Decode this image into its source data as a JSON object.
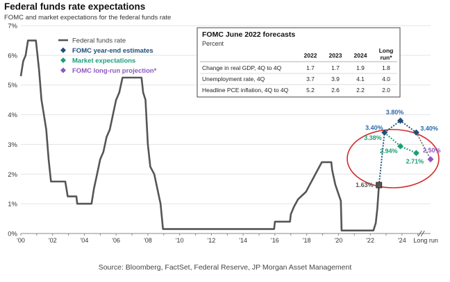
{
  "title": "Federal funds rate expectations",
  "subtitle": "FOMC and market expectations for the federal funds rate",
  "source": "Source:  Bloomberg, FactSet, Federal Reserve, JP Morgan Asset Management",
  "chart_data": {
    "type": "line",
    "ylim": [
      0,
      7
    ],
    "xlim": [
      2000,
      2025.8
    ],
    "yticks": [
      "0%",
      "1%",
      "2%",
      "3%",
      "4%",
      "5%",
      "6%",
      "7%"
    ],
    "xticks": [
      {
        "x": 2000,
        "label": "'00"
      },
      {
        "x": 2002,
        "label": "'02"
      },
      {
        "x": 2004,
        "label": "'04"
      },
      {
        "x": 2006,
        "label": "'06"
      },
      {
        "x": 2008,
        "label": "'08"
      },
      {
        "x": 2010,
        "label": "'10"
      },
      {
        "x": 2012,
        "label": "'12"
      },
      {
        "x": 2014,
        "label": "'14"
      },
      {
        "x": 2016,
        "label": "'16"
      },
      {
        "x": 2018,
        "label": "'18"
      },
      {
        "x": 2020,
        "label": "'20"
      },
      {
        "x": 2022,
        "label": "'22"
      },
      {
        "x": 2024,
        "label": "'24"
      },
      {
        "x": 2025.5,
        "label": "Long run"
      }
    ],
    "legend": [
      {
        "label": "Federal funds rate",
        "color": "#555555",
        "marker": "line"
      },
      {
        "label": "FOMC year-end estimates",
        "color": "#1f4e79",
        "marker": "diamond"
      },
      {
        "label": "Market expectations",
        "color": "#1a9e77",
        "marker": "diamond"
      },
      {
        "label": "FOMC long-run projection*",
        "color": "#8e55c4",
        "marker": "diamond"
      }
    ],
    "series": [
      {
        "name": "Federal funds rate",
        "color": "#555555",
        "points": [
          [
            2000.0,
            5.3
          ],
          [
            2000.15,
            5.8
          ],
          [
            2000.3,
            6.0
          ],
          [
            2000.45,
            6.5
          ],
          [
            2000.95,
            6.5
          ],
          [
            2001.05,
            6.0
          ],
          [
            2001.15,
            5.5
          ],
          [
            2001.3,
            4.5
          ],
          [
            2001.45,
            4.0
          ],
          [
            2001.6,
            3.5
          ],
          [
            2001.75,
            2.5
          ],
          [
            2001.9,
            1.75
          ],
          [
            2002.8,
            1.75
          ],
          [
            2002.95,
            1.25
          ],
          [
            2003.5,
            1.25
          ],
          [
            2003.55,
            1.0
          ],
          [
            2004.45,
            1.0
          ],
          [
            2004.6,
            1.5
          ],
          [
            2004.8,
            2.0
          ],
          [
            2005.0,
            2.5
          ],
          [
            2005.2,
            2.75
          ],
          [
            2005.4,
            3.25
          ],
          [
            2005.6,
            3.5
          ],
          [
            2005.8,
            4.0
          ],
          [
            2006.0,
            4.5
          ],
          [
            2006.2,
            4.75
          ],
          [
            2006.4,
            5.25
          ],
          [
            2007.6,
            5.25
          ],
          [
            2007.7,
            4.75
          ],
          [
            2007.85,
            4.5
          ],
          [
            2008.0,
            3.0
          ],
          [
            2008.15,
            2.25
          ],
          [
            2008.4,
            2.0
          ],
          [
            2008.8,
            1.0
          ],
          [
            2008.95,
            0.15
          ],
          [
            2015.95,
            0.15
          ],
          [
            2016.0,
            0.4
          ],
          [
            2016.95,
            0.4
          ],
          [
            2017.0,
            0.65
          ],
          [
            2017.2,
            0.9
          ],
          [
            2017.45,
            1.15
          ],
          [
            2017.95,
            1.4
          ],
          [
            2018.2,
            1.65
          ],
          [
            2018.45,
            1.9
          ],
          [
            2018.7,
            2.15
          ],
          [
            2018.95,
            2.4
          ],
          [
            2019.55,
            2.4
          ],
          [
            2019.6,
            2.15
          ],
          [
            2019.7,
            1.9
          ],
          [
            2019.8,
            1.65
          ],
          [
            2020.15,
            1.1
          ],
          [
            2020.2,
            0.1
          ],
          [
            2022.2,
            0.1
          ],
          [
            2022.35,
            0.35
          ],
          [
            2022.45,
            0.85
          ],
          [
            2022.55,
            1.63
          ]
        ]
      }
    ],
    "annotations": {
      "fed_funds_current": {
        "x": 2022.55,
        "y": 1.63,
        "label": "1.63%"
      },
      "fomc_year_end": [
        {
          "x": 2022.9,
          "y": 3.4,
          "label": "3.40%"
        },
        {
          "x": 2023.9,
          "y": 3.8,
          "label": "3.80%"
        },
        {
          "x": 2024.9,
          "y": 3.4,
          "label": "3.40%"
        }
      ],
      "market": [
        {
          "x": 2022.9,
          "y": 3.38,
          "label": "3.38%"
        },
        {
          "x": 2023.9,
          "y": 2.94,
          "label": "2.94%"
        },
        {
          "x": 2024.9,
          "y": 2.71,
          "label": "2.71%"
        }
      ],
      "long_run": {
        "x": 2025.8,
        "y": 2.5,
        "label": "2.50%"
      }
    },
    "table": {
      "title": "FOMC June 2022 forecasts",
      "subtitle": "Percent",
      "columns": [
        "",
        "2022",
        "2023",
        "2024",
        "Long run*"
      ],
      "rows": [
        {
          "label": "Change in real GDP, 4Q to 4Q",
          "values": [
            "1.7",
            "1.7",
            "1.9",
            "1.8"
          ]
        },
        {
          "label": "Unemployment rate, 4Q",
          "values": [
            "3.7",
            "3.9",
            "4.1",
            "4.0"
          ]
        },
        {
          "label": "Headline PCE inflation, 4Q to 4Q",
          "values": [
            "5.2",
            "2.6",
            "2.2",
            "2.0"
          ]
        }
      ]
    }
  }
}
